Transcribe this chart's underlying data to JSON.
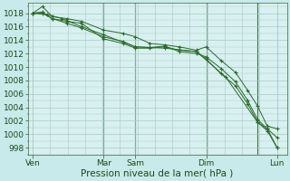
{
  "background_color": "#c8eaea",
  "plot_bg_color": "#d8f0f0",
  "grid_color": "#a8c8c8",
  "line_color": "#2a6a2a",
  "marker_color": "#2a6a2a",
  "ylabel_ticks": [
    998,
    1000,
    1002,
    1004,
    1006,
    1008,
    1010,
    1012,
    1014,
    1016,
    1018
  ],
  "ylim": [
    997,
    1019.5
  ],
  "xlabel": "Pression niveau de la mer( hPa )",
  "xtick_labels": [
    "Ven",
    "Mar",
    "Sam",
    "Dim",
    "Lun"
  ],
  "xtick_positions": [
    0.0,
    0.29,
    0.42,
    0.71,
    1.0
  ],
  "series": [
    {
      "x": [
        0.0,
        0.04,
        0.08,
        0.14,
        0.2,
        0.29,
        0.37,
        0.42,
        0.48,
        0.54,
        0.6,
        0.67,
        0.71,
        0.77,
        0.83,
        0.88,
        0.92,
        0.96,
        1.0
      ],
      "y": [
        1018.0,
        1018.0,
        1017.2,
        1016.8,
        1016.5,
        1014.2,
        1013.5,
        1012.8,
        1012.8,
        1013.0,
        1012.5,
        1012.3,
        1011.2,
        1009.0,
        1007.2,
        1004.5,
        1001.8,
        1000.5,
        998.0
      ]
    },
    {
      "x": [
        0.0,
        0.04,
        0.08,
        0.14,
        0.2,
        0.29,
        0.37,
        0.42,
        0.48,
        0.54,
        0.6,
        0.67,
        0.71,
        0.77,
        0.83,
        0.88,
        0.92,
        0.96,
        1.0
      ],
      "y": [
        1018.0,
        1019.0,
        1017.5,
        1017.2,
        1016.8,
        1015.5,
        1015.0,
        1014.5,
        1013.5,
        1013.3,
        1013.0,
        1012.5,
        1013.0,
        1011.0,
        1009.2,
        1006.5,
        1004.2,
        1001.2,
        1000.8
      ]
    },
    {
      "x": [
        0.0,
        0.04,
        0.08,
        0.14,
        0.2,
        0.29,
        0.37,
        0.42,
        0.48,
        0.54,
        0.6,
        0.67,
        0.71,
        0.77,
        0.83,
        0.88,
        0.92,
        0.96,
        1.0
      ],
      "y": [
        1018.0,
        1018.2,
        1017.2,
        1016.5,
        1015.8,
        1014.5,
        1013.8,
        1013.0,
        1012.9,
        1013.1,
        1012.3,
        1012.0,
        1011.5,
        1009.8,
        1007.8,
        1005.0,
        1002.2,
        1000.8,
        999.5
      ]
    },
    {
      "x": [
        0.0,
        0.06,
        0.12,
        0.2,
        0.29,
        0.42,
        0.54,
        0.67,
        0.79,
        0.92,
        0.96,
        1.0
      ],
      "y": [
        1018.0,
        1017.8,
        1017.2,
        1016.0,
        1014.8,
        1013.0,
        1012.8,
        1012.3,
        1008.5,
        1001.8,
        1000.8,
        998.0
      ]
    }
  ],
  "vline_positions": [
    0.29,
    0.42,
    0.71,
    0.92
  ],
  "vline_color": "#3a6a3a",
  "tick_color": "#2a5a2a",
  "font_color": "#1a4a1a",
  "font_size": 6.5,
  "label_font_size": 7.5
}
